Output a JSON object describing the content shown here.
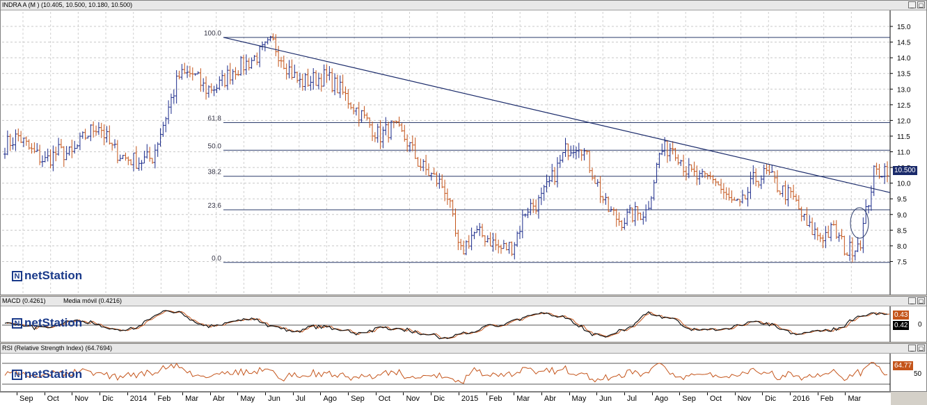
{
  "panels": {
    "price": {
      "title": "INDRA A (M ) (10.405, 10.500, 10.180, 10.500)",
      "last_tag": "10.500"
    },
    "macd": {
      "title": "MACD (0.4261)",
      "title2": "Media móvil (0.4216)",
      "tag1": "0.43",
      "tag2": "0.42",
      "zero_label": "0"
    },
    "rsi": {
      "title": "RSI (Relative Strength Index) (64.7694)",
      "tag": "64.77",
      "mid_label": "50"
    }
  },
  "logo": {
    "text": "netStation",
    "icon": "N"
  },
  "window_buttons": {
    "minimize": "_",
    "restore": "▢"
  },
  "colors": {
    "bull": "#1a2a8a",
    "bear": "#c4541a",
    "trendline": "#1a2a6a",
    "fib": "#2a3a6a",
    "macd": "#111111",
    "signal": "#c4541a"
  },
  "chart_data": {
    "type": "candlestick",
    "y_ticks": [
      "15.0",
      "14.5",
      "14.0",
      "13.5",
      "13.0",
      "12.5",
      "12.0",
      "11.5",
      "11.0",
      "10.5",
      "10.0",
      "9.5",
      "9.0",
      "8.5",
      "8.0",
      "7.5"
    ],
    "ylim": [
      7.0,
      15.2
    ],
    "fibonacci_levels": [
      {
        "label": "100.0",
        "value": 14.65
      },
      {
        "label": "61.8",
        "value": 11.93
      },
      {
        "label": "50.0",
        "value": 11.05
      },
      {
        "label": "38.2",
        "value": 10.22
      },
      {
        "label": "23.6",
        "value": 9.15
      },
      {
        "label": "0.0",
        "value": 7.47
      }
    ],
    "months": [
      "Sep",
      "Oct",
      "Nov",
      "Dic",
      "2014",
      "Feb",
      "Mar",
      "Abr",
      "May",
      "Jun",
      "Jul",
      "Ago",
      "Sep",
      "Oct",
      "Nov",
      "Dic",
      "2015",
      "Feb",
      "Mar",
      "Abr",
      "May",
      "Jun",
      "Jul",
      "Ago",
      "Sep",
      "Oct",
      "Nov",
      "Dic",
      "2016",
      "Feb",
      "Mar"
    ],
    "close_path": [
      11.2,
      11.5,
      11.0,
      10.7,
      11.0,
      10.9,
      11.5,
      11.9,
      11.1,
      10.8,
      10.7,
      10.8,
      12.1,
      13.4,
      13.5,
      13.0,
      13.1,
      13.6,
      13.8,
      14.1,
      14.5,
      13.8,
      13.2,
      13.3,
      13.4,
      13.0,
      12.5,
      12.0,
      11.5,
      11.8,
      11.4,
      10.6,
      10.2,
      9.8,
      7.7,
      8.4,
      8.3,
      7.9,
      8.0,
      9.2,
      9.4,
      10.2,
      11.1,
      11.3,
      10.3,
      9.2,
      8.8,
      9.0,
      9.1,
      11.0,
      11.2,
      10.4,
      10.1,
      10.2,
      9.5,
      9.2,
      10.1,
      10.3,
      9.8,
      9.5,
      8.6,
      8.3,
      8.5,
      7.8,
      8.2,
      10.3,
      10.5
    ],
    "trendline": {
      "from": 14.65,
      "to": 9.7
    },
    "ellipse_note": "circle marker near 9.0",
    "macd_series": [
      {
        "name": "MACD"
      },
      {
        "name": "Media móvil"
      }
    ],
    "rsi_levels": [
      70,
      30
    ]
  }
}
